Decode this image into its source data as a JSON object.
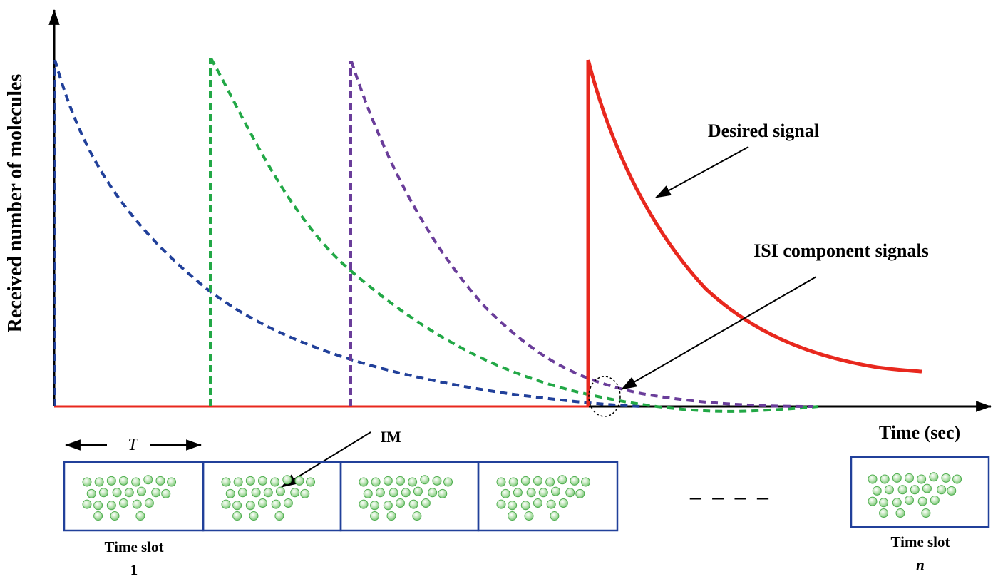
{
  "diagram": {
    "y_axis_label": "Received number of molecules",
    "x_axis_label": "Time (sec)",
    "desired_signal_label": "Desired signal",
    "isi_label": "ISI component signals",
    "im_label": "IM",
    "period_label": "T",
    "ellipsis": "_ _ _ _",
    "slot_first": {
      "title": "Time slot",
      "index": "1"
    },
    "slot_last": {
      "title": "Time slot",
      "index": "n"
    },
    "colors": {
      "axis": "#000000",
      "baseline": "#e8281e",
      "first_pulse": "#21409a",
      "second_pulse": "#22a846",
      "third_pulse": "#6a3d9a",
      "desired": "#e8281e",
      "slot_border": "#21409a",
      "molecule_fill": "#bfe6b8",
      "molecule_stroke": "#4fae4f"
    }
  }
}
